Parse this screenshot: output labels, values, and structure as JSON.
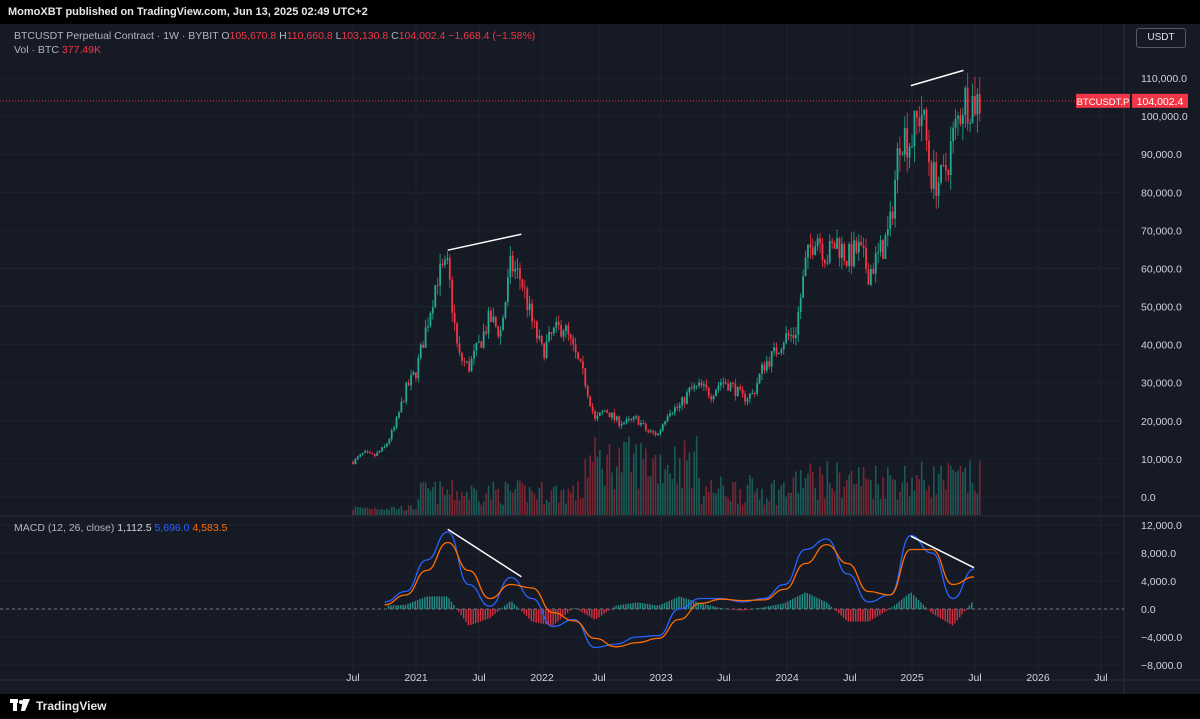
{
  "header": {
    "text": "MomoXBT published on TradingView.com, Jun 13, 2025 02:49 UTC+2"
  },
  "legend": {
    "symbol": "BTCUSDT Perpetual Contract · 1W · BYBIT",
    "o_label": "O",
    "o": "105,670.8",
    "h_label": "H",
    "h": "110,660.8",
    "l_label": "L",
    "l": "103,130.8",
    "c_label": "C",
    "c": "104,002.4",
    "chg": "−1,668.4 (−1.58%)",
    "vol_label": "Vol · BTC",
    "vol": "377.49K",
    "macd_label": "MACD (12, 26, close)",
    "macd_hist": "1,112.5",
    "macd_line": "5,696.0",
    "macd_signal": "4,583.5"
  },
  "currency_button": "USDT",
  "price_tag": {
    "symbol": "BTCUSDT.P",
    "value": "104,002.4"
  },
  "footer": {
    "brand": "TradingView"
  },
  "colors": {
    "up": "#22ab94",
    "down": "#f23645",
    "macd": "#2962ff",
    "signal": "#ff6d00",
    "background": "#161a25"
  },
  "chart_data": [
    {
      "type": "candlestick",
      "title": "BTCUSDT Perpetual Contract · 1W · BYBIT",
      "x_ticks": [
        "Jul",
        "2021",
        "Jul",
        "2022",
        "Jul",
        "2023",
        "Jul",
        "2024",
        "Jul",
        "2025",
        "Jul",
        "2026",
        "Jul"
      ],
      "y_ticks": [
        0,
        10000,
        20000,
        30000,
        40000,
        50000,
        60000,
        70000,
        80000,
        90000,
        100000,
        110000
      ],
      "ylim": [
        -2000,
        112000
      ],
      "last_price": 104002.4,
      "price_path": [
        [
          "2020-07",
          9200
        ],
        [
          "2020-08",
          11500
        ],
        [
          "2020-09",
          10700
        ],
        [
          "2020-10",
          13000
        ],
        [
          "2020-11",
          18500
        ],
        [
          "2020-12",
          28000
        ],
        [
          "2021-01",
          33000
        ],
        [
          "2021-02",
          45000
        ],
        [
          "2021-03",
          58000
        ],
        [
          "2021-04",
          60000
        ],
        [
          "2021-05",
          37000
        ],
        [
          "2021-06",
          34000
        ],
        [
          "2021-07",
          40000
        ],
        [
          "2021-08",
          47000
        ],
        [
          "2021-09",
          43000
        ],
        [
          "2021-10",
          61000
        ],
        [
          "2021-11",
          57000
        ],
        [
          "2021-12",
          46000
        ],
        [
          "2022-01",
          38000
        ],
        [
          "2022-02",
          43000
        ],
        [
          "2022-03",
          45000
        ],
        [
          "2022-04",
          38000
        ],
        [
          "2022-05",
          31000
        ],
        [
          "2022-06",
          20000
        ],
        [
          "2022-07",
          23000
        ],
        [
          "2022-08",
          20000
        ],
        [
          "2022-09",
          19500
        ],
        [
          "2022-10",
          20500
        ],
        [
          "2022-11",
          17000
        ],
        [
          "2022-12",
          16500
        ],
        [
          "2023-01",
          23000
        ],
        [
          "2023-02",
          23500
        ],
        [
          "2023-03",
          28000
        ],
        [
          "2023-04",
          29000
        ],
        [
          "2023-05",
          27000
        ],
        [
          "2023-06",
          30500
        ],
        [
          "2023-07",
          29200
        ],
        [
          "2023-08",
          26000
        ],
        [
          "2023-09",
          27000
        ],
        [
          "2023-10",
          34500
        ],
        [
          "2023-11",
          37500
        ],
        [
          "2023-12",
          42000
        ],
        [
          "2024-01",
          42500
        ],
        [
          "2024-02",
          61000
        ],
        [
          "2024-03",
          70000
        ],
        [
          "2024-04",
          63000
        ],
        [
          "2024-05",
          67000
        ],
        [
          "2024-06",
          62500
        ],
        [
          "2024-07",
          65000
        ],
        [
          "2024-08",
          59000
        ],
        [
          "2024-09",
          63500
        ],
        [
          "2024-10",
          70000
        ],
        [
          "2024-11",
          96000
        ],
        [
          "2024-12",
          93500
        ],
        [
          "2025-01",
          102000
        ],
        [
          "2025-02",
          84000
        ],
        [
          "2025-03",
          82500
        ],
        [
          "2025-04",
          94000
        ],
        [
          "2025-05",
          104500
        ],
        [
          "2025-06",
          104002
        ]
      ],
      "trendlines_peaks": [
        {
          "from": [
            "2021-04",
            64800
          ],
          "to": [
            "2021-11",
            69000
          ]
        },
        {
          "from": [
            "2024-12",
            108000
          ],
          "to": [
            "2025-05",
            112000
          ]
        }
      ]
    },
    {
      "type": "bar",
      "title": "Vol · BTC",
      "last_value_label": "377.49K"
    },
    {
      "type": "line",
      "title": "MACD (12, 26, close)",
      "y_ticks": [
        -8000,
        -4000,
        0,
        4000,
        8000,
        12000
      ],
      "ylim": [
        -8000,
        12000
      ],
      "series": [
        {
          "name": "MACD",
          "values_by_month": [
            [
              "2020-10",
              1000
            ],
            [
              "2020-12",
              2500
            ],
            [
              "2021-02",
              7000
            ],
            [
              "2021-04",
              11000
            ],
            [
              "2021-06",
              3500
            ],
            [
              "2021-08",
              400
            ],
            [
              "2021-10",
              4500
            ],
            [
              "2021-12",
              1500
            ],
            [
              "2022-02",
              -2500
            ],
            [
              "2022-04",
              -1500
            ],
            [
              "2022-06",
              -5500
            ],
            [
              "2022-08",
              -5000
            ],
            [
              "2022-10",
              -4000
            ],
            [
              "2022-12",
              -3800
            ],
            [
              "2023-02",
              0
            ],
            [
              "2023-04",
              1500
            ],
            [
              "2023-06",
              1500
            ],
            [
              "2023-08",
              1000
            ],
            [
              "2023-10",
              1500
            ],
            [
              "2023-12",
              3500
            ],
            [
              "2024-02",
              8500
            ],
            [
              "2024-04",
              10000
            ],
            [
              "2024-06",
              5000
            ],
            [
              "2024-08",
              1000
            ],
            [
              "2024-10",
              2000
            ],
            [
              "2024-12",
              10500
            ],
            [
              "2025-02",
              8000
            ],
            [
              "2025-04",
              1500
            ],
            [
              "2025-06",
              5696
            ]
          ]
        },
        {
          "name": "Signal",
          "values_by_month": [
            [
              "2020-10",
              600
            ],
            [
              "2020-12",
              2000
            ],
            [
              "2021-02",
              5500
            ],
            [
              "2021-04",
              9500
            ],
            [
              "2021-06",
              5500
            ],
            [
              "2021-08",
              1500
            ],
            [
              "2021-10",
              3500
            ],
            [
              "2021-12",
              3000
            ],
            [
              "2022-02",
              -500
            ],
            [
              "2022-04",
              -1700
            ],
            [
              "2022-06",
              -4200
            ],
            [
              "2022-08",
              -5400
            ],
            [
              "2022-10",
              -4800
            ],
            [
              "2022-12",
              -4200
            ],
            [
              "2023-02",
              -1500
            ],
            [
              "2023-04",
              800
            ],
            [
              "2023-06",
              1400
            ],
            [
              "2023-08",
              1200
            ],
            [
              "2023-10",
              1300
            ],
            [
              "2023-12",
              2800
            ],
            [
              "2024-02",
              6500
            ],
            [
              "2024-04",
              9200
            ],
            [
              "2024-06",
              6500
            ],
            [
              "2024-08",
              2500
            ],
            [
              "2024-10",
              2000
            ],
            [
              "2024-12",
              8500
            ],
            [
              "2025-02",
              8500
            ],
            [
              "2025-04",
              3500
            ],
            [
              "2025-06",
              4583.5
            ]
          ]
        }
      ],
      "trendlines_peaks": [
        {
          "from": [
            "2021-04",
            11400
          ],
          "to": [
            "2021-11",
            4600
          ]
        },
        {
          "from": [
            "2024-12",
            10400
          ],
          "to": [
            "2025-06",
            5900
          ]
        }
      ]
    }
  ]
}
